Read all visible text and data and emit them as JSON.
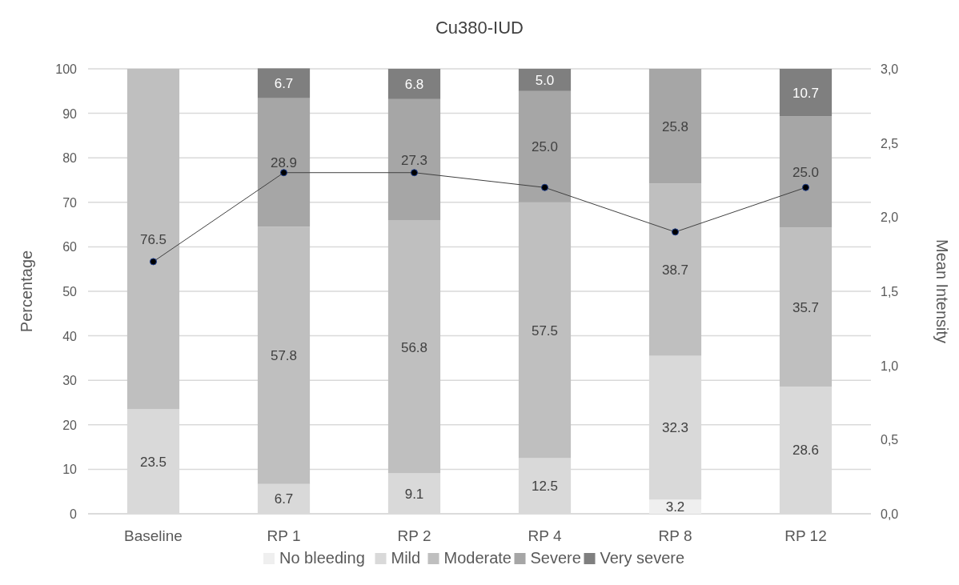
{
  "chart_data": {
    "type": "bar",
    "title": "Cu380-IUD",
    "ylabel": "Percentage",
    "y2label": "Mean Intensity",
    "categories": [
      "Baseline",
      "RP 1",
      "RP 2",
      "RP 4",
      "RP 8",
      "RP 12"
    ],
    "stacked": true,
    "series": [
      {
        "name": "No bleeding",
        "color": "#efefef",
        "values": [
          null,
          null,
          null,
          null,
          3.2,
          null
        ],
        "value_labels": [
          null,
          null,
          null,
          null,
          "3.2",
          null
        ]
      },
      {
        "name": "Mild",
        "color": "#d9d9d9",
        "values": [
          23.5,
          6.7,
          9.1,
          12.5,
          32.3,
          28.6
        ],
        "value_labels": [
          "23.5",
          "6.7",
          "9.1",
          "12.5",
          "32.3",
          "28.6"
        ]
      },
      {
        "name": "Moderate",
        "color": "#bfbfbf",
        "values": [
          76.5,
          57.8,
          56.8,
          57.5,
          38.7,
          35.7
        ],
        "value_labels": [
          "76.5",
          "57.8",
          "56.8",
          "57.5",
          "38.7",
          "35.7"
        ]
      },
      {
        "name": "Severe",
        "color": "#a6a6a6",
        "values": [
          null,
          28.9,
          27.3,
          25.0,
          25.8,
          25.0
        ],
        "value_labels": [
          null,
          "28.9",
          "27.3",
          "25.0",
          "25.8",
          "25.0"
        ]
      },
      {
        "name": "Very severe",
        "color": "#7f7f7f",
        "values": [
          null,
          6.7,
          6.8,
          5.0,
          null,
          10.7
        ],
        "value_labels": [
          null,
          "6.7",
          "6.8",
          "5.0",
          null,
          "10.7"
        ]
      },
      {
        "type": "line",
        "axis": "y2",
        "color": "#404040",
        "marker": "circle",
        "values": [
          1.7,
          2.3,
          2.3,
          2.2,
          1.9,
          2.2
        ]
      }
    ],
    "ylim": [
      0,
      100
    ],
    "yticks": [
      0,
      10,
      20,
      30,
      40,
      50,
      60,
      70,
      80,
      90,
      100
    ],
    "y2lim": [
      0,
      3
    ],
    "y2ticks": [
      {
        "value": 0,
        "label": "0,0"
      },
      {
        "value": 0.5,
        "label": "0,5"
      },
      {
        "value": 1,
        "label": "1,0"
      },
      {
        "value": 1.5,
        "label": "1,5"
      },
      {
        "value": 2,
        "label": "2,0"
      },
      {
        "value": 2.5,
        "label": "2,5"
      },
      {
        "value": 3,
        "label": "3,0"
      }
    ],
    "grid": "y",
    "legend": "bottom"
  }
}
